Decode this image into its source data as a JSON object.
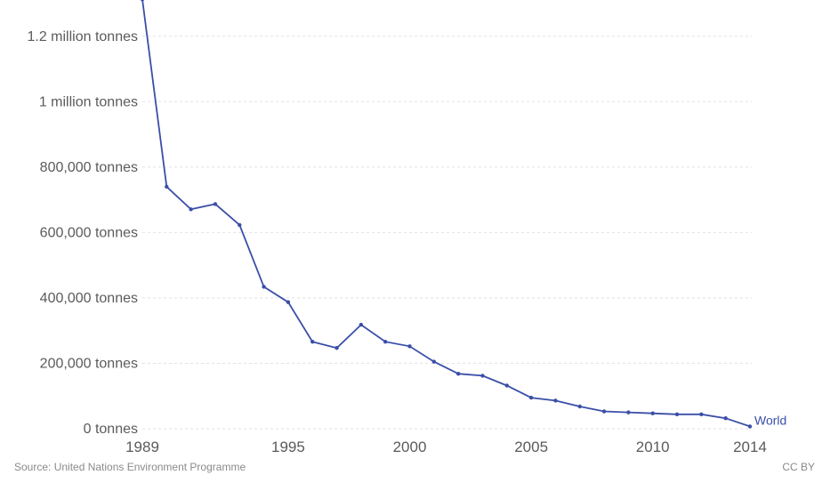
{
  "chart_data": {
    "type": "line",
    "title": "",
    "xlabel": "",
    "ylabel": "",
    "xlim": [
      1989,
      2014
    ],
    "ylim": [
      0,
      1300000
    ],
    "x_ticks": [
      1989,
      1995,
      2000,
      2005,
      2010,
      2014
    ],
    "y_ticks": [
      {
        "value": 0,
        "label": "0 tonnes"
      },
      {
        "value": 200000,
        "label": "200,000 tonnes"
      },
      {
        "value": 400000,
        "label": "400,000 tonnes"
      },
      {
        "value": 600000,
        "label": "600,000 tonnes"
      },
      {
        "value": 800000,
        "label": "800,000 tonnes"
      },
      {
        "value": 1000000,
        "label": "1 million tonnes"
      },
      {
        "value": 1200000,
        "label": "1.2 million tonnes"
      }
    ],
    "grid": true,
    "series": [
      {
        "name": "World",
        "color": "#3a4fa8",
        "x": [
          1989,
          1990,
          1991,
          1992,
          1993,
          1994,
          1995,
          1996,
          1997,
          1998,
          1999,
          2000,
          2001,
          2002,
          2003,
          2004,
          2005,
          2006,
          2007,
          2008,
          2009,
          2010,
          2011,
          2012,
          2013,
          2014
        ],
        "y": [
          1313000,
          740000,
          671000,
          687000,
          623000,
          434000,
          387000,
          266000,
          247000,
          318000,
          266000,
          252000,
          205000,
          168000,
          162000,
          132000,
          95000,
          86000,
          68000,
          53000,
          50000,
          47000,
          44000,
          44000,
          32000,
          7000
        ]
      }
    ]
  },
  "footer": {
    "source": "Source: United Nations Environment Programme",
    "license": "CC BY"
  }
}
